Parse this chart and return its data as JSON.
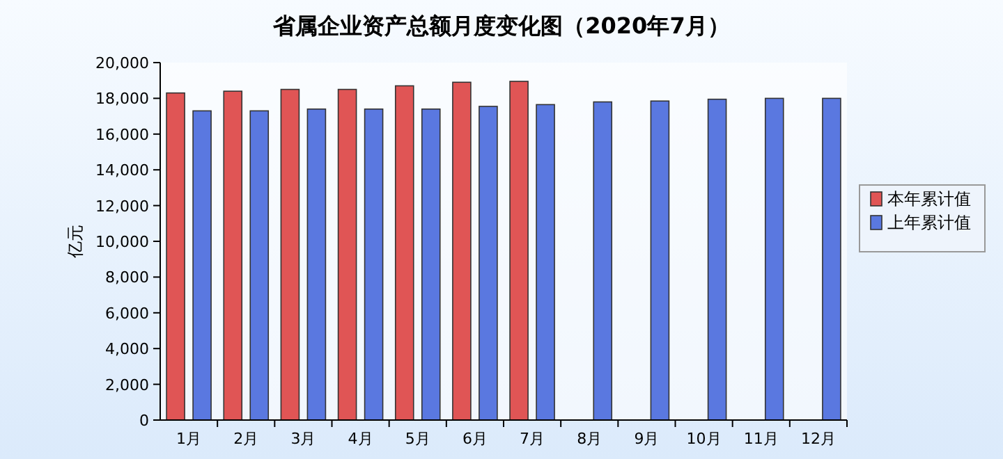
{
  "chart_data": {
    "type": "bar",
    "title": "省属企业资产总额月度变化图（2020年7月）",
    "ylabel": "亿元",
    "categories": [
      "1月",
      "2月",
      "3月",
      "4月",
      "5月",
      "6月",
      "7月",
      "8月",
      "9月",
      "10月",
      "11月",
      "12月"
    ],
    "series": [
      {
        "name": "本年累计值",
        "color": "#e05555",
        "values": [
          18300,
          18400,
          18500,
          18500,
          18700,
          18900,
          18950,
          null,
          null,
          null,
          null,
          null
        ]
      },
      {
        "name": "上年累计值",
        "color": "#5a78e0",
        "values": [
          17300,
          17300,
          17400,
          17400,
          17400,
          17550,
          17650,
          17800,
          17850,
          17950,
          18000,
          18000
        ]
      }
    ],
    "ylim": [
      0,
      20000
    ],
    "yticks": [
      {
        "value": 0,
        "label": "0"
      },
      {
        "value": 2000,
        "label": "2,000"
      },
      {
        "value": 4000,
        "label": "4,000"
      },
      {
        "value": 6000,
        "label": "6,000"
      },
      {
        "value": 8000,
        "label": "8,000"
      },
      {
        "value": 10000,
        "label": "10,000"
      },
      {
        "value": 12000,
        "label": "12,000"
      },
      {
        "value": 14000,
        "label": "14,000"
      },
      {
        "value": 16000,
        "label": "16,000"
      },
      {
        "value": 18000,
        "label": "18,000"
      },
      {
        "value": 20000,
        "label": "20,000"
      }
    ],
    "legend": "right"
  }
}
